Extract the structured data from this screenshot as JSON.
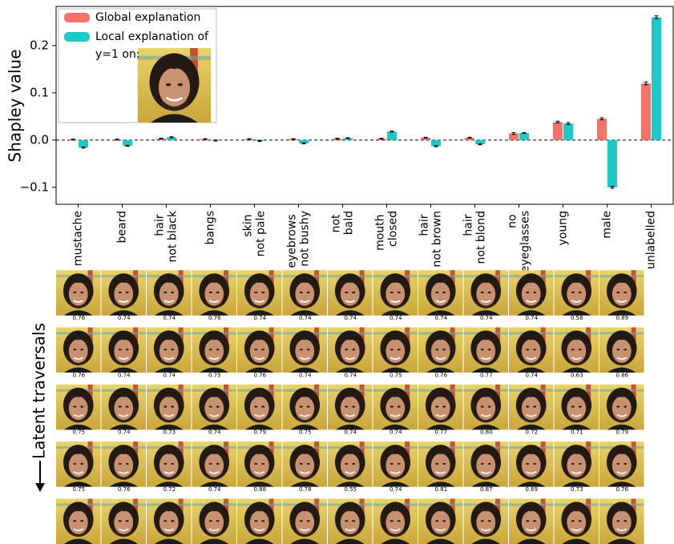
{
  "chart_data": {
    "type": "bar",
    "ylabel": "Shapley value",
    "categories": [
      "mustache",
      "beard",
      "hair\nnot black",
      "bangs",
      "skin\nnot pale",
      "eyebrows\nnot bushy",
      "not\nbald",
      "mouth\nclosed",
      "hair\nnot brown",
      "hair\nnot blond",
      "no\neyeglasses",
      "young",
      "male",
      "unlabelled"
    ],
    "series": [
      {
        "name": "Global explanation",
        "color": "#f4726a",
        "values": [
          0.001,
          0.001,
          0.003,
          0.002,
          0.002,
          0.002,
          0.003,
          0.003,
          0.005,
          0.005,
          0.014,
          0.038,
          0.045,
          0.12
        ],
        "errors": [
          0.001,
          0.001,
          0.001,
          0.001,
          0.001,
          0.001,
          0.001,
          0.001,
          0.001,
          0.001,
          0.002,
          0.002,
          0.002,
          0.003
        ]
      },
      {
        "name": "Local explanation of\ny=1 on:",
        "color": "#1ec9c5",
        "values": [
          -0.016,
          -0.012,
          0.006,
          -0.001,
          -0.002,
          -0.007,
          0.004,
          0.018,
          -0.013,
          -0.009,
          0.015,
          0.035,
          -0.1,
          0.26
        ],
        "errors": [
          0.001,
          0.001,
          0.001,
          0.001,
          0.001,
          0.001,
          0.001,
          0.001,
          0.001,
          0.001,
          0.001,
          0.002,
          0.002,
          0.003
        ]
      }
    ],
    "ylim": [
      -0.136,
      0.283
    ],
    "yticks": [
      {
        "value": -0.1,
        "label": "−0.1"
      },
      {
        "value": 0,
        "label": "0.0"
      },
      {
        "value": 0.1,
        "label": "0.1"
      },
      {
        "value": 0.2,
        "label": "0.2"
      }
    ],
    "zero_line": true,
    "legend": "upper left"
  },
  "traversals": {
    "label": "Latent traversals",
    "rows": [
      [
        "0.76",
        "0.74",
        "0.74",
        "0.76",
        "0.74",
        "0.74",
        "0.74",
        "0.74",
        "0.74",
        "0.74",
        "0.74",
        "0.58",
        "0.89"
      ],
      [
        "0.76",
        "0.74",
        "0.74",
        "0.75",
        "0.76",
        "0.74",
        "0.74",
        "0.75",
        "0.76",
        "0.77",
        "0.74",
        "0.63",
        "0.86"
      ],
      [
        "0.75",
        "0.74",
        "0.73",
        "0.74",
        "0.79",
        "0.75",
        "0.74",
        "0.74",
        "0.77",
        "0.80",
        "0.72",
        "0.71",
        "0.79"
      ],
      [
        "0.75",
        "0.76",
        "0.72",
        "0.74",
        "0.88",
        "0.78",
        "0.55",
        "0.74",
        "0.81",
        "0.87",
        "0.69",
        "0.73",
        "0.76"
      ]
    ]
  }
}
